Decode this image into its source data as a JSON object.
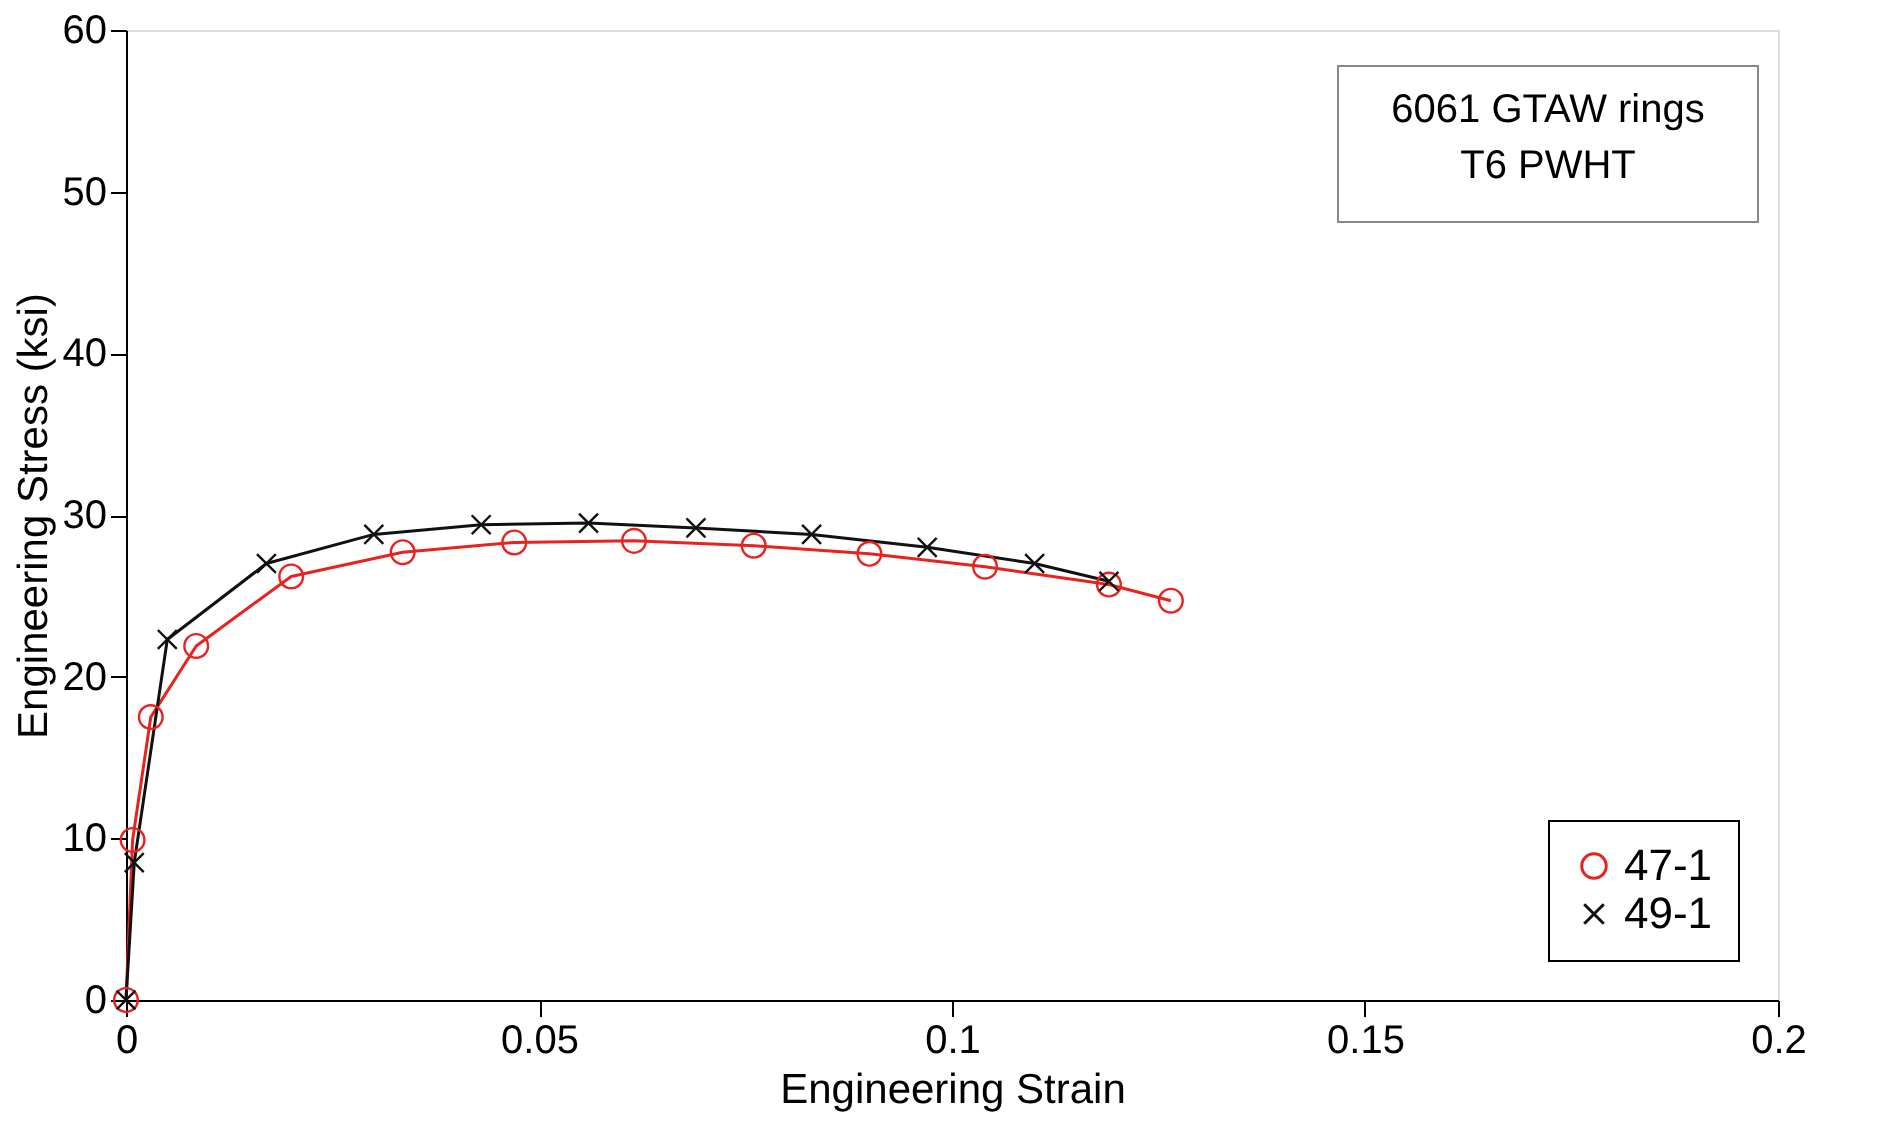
{
  "chart_data": {
    "type": "line",
    "xlabel": "Engineering Strain",
    "ylabel": "Engineering Stress (ksi)",
    "annotations": [
      "6061 GTAW rings\nT6 PWHT"
    ],
    "xlim": [
      0,
      0.2
    ],
    "xticks": [
      0,
      0.05,
      0.1,
      0.15,
      0.2
    ],
    "ylim": [
      0,
      60
    ],
    "yticks": [
      0,
      10,
      20,
      30,
      40,
      50,
      60
    ],
    "grid": false,
    "legend": "bottom right",
    "series": [
      {
        "name": "47-1",
        "color": "#e8231f",
        "marker": "circle",
        "x": [
          0,
          0.0008,
          0.003,
          0.0085,
          0.02,
          0.0335,
          0.047,
          0.0615,
          0.076,
          0.09,
          0.104,
          0.119,
          0.1265
        ],
        "values": [
          0,
          9.9,
          17.5,
          21.9,
          26.2,
          27.7,
          28.3,
          28.4,
          28.1,
          27.6,
          26.8,
          25.7,
          24.7
        ]
      },
      {
        "name": "49-1",
        "color": "#111111",
        "marker": "cross",
        "x": [
          0,
          0.001,
          0.005,
          0.017,
          0.03,
          0.043,
          0.056,
          0.069,
          0.083,
          0.097,
          0.11,
          0.119
        ],
        "values": [
          0,
          8.5,
          22.3,
          27.0,
          28.8,
          29.4,
          29.5,
          29.2,
          28.8,
          28.0,
          27.0,
          25.9
        ]
      }
    ]
  }
}
